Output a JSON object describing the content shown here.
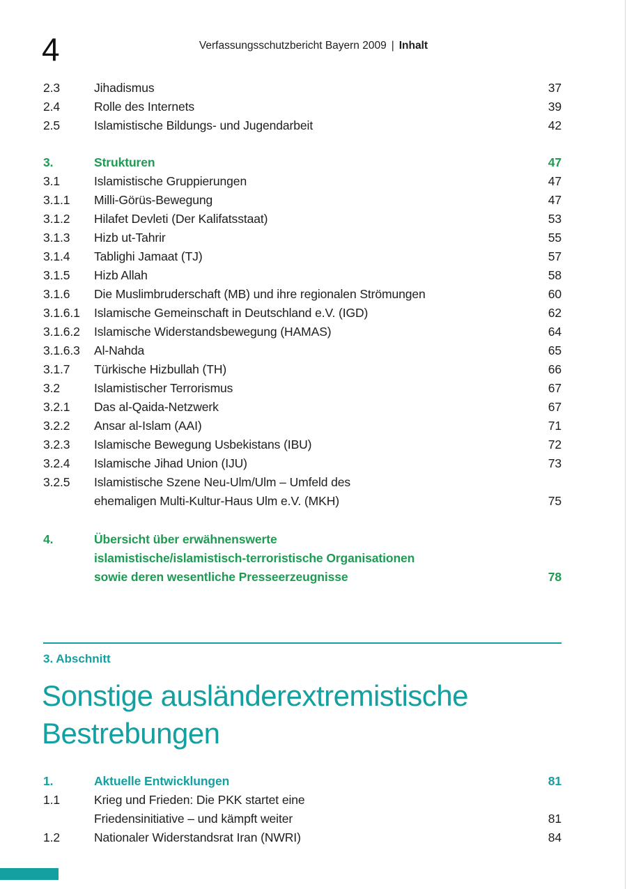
{
  "colors": {
    "accent_green": "#1e9b53",
    "accent_teal": "#14a0a0",
    "text": "#1d1d1b"
  },
  "header": {
    "page_number": "4",
    "report_title": "Verfassungsschutzbericht Bayern 2009",
    "separator": "|",
    "section_label": "Inhalt"
  },
  "toc_islamismus": {
    "entries": [
      {
        "num": "2.3",
        "lines": [
          "Jihadismus"
        ],
        "page": "37"
      },
      {
        "num": "2.4",
        "lines": [
          "Rolle des Internets"
        ],
        "page": "39"
      },
      {
        "num": "2.5",
        "lines": [
          "Islamistische Bildungs- und Jugendarbeit"
        ],
        "page": "42"
      },
      {
        "num": "3.",
        "lines": [
          "Strukturen"
        ],
        "page": "47"
      },
      {
        "num": "3.1",
        "lines": [
          "Islamistische Gruppierungen"
        ],
        "page": "47"
      },
      {
        "num": "3.1.1",
        "lines": [
          "Milli-Görüs-Bewegung"
        ],
        "page": "47"
      },
      {
        "num": "3.1.2",
        "lines": [
          "Hilafet Devleti (Der Kalifatsstaat)"
        ],
        "page": "53"
      },
      {
        "num": "3.1.3",
        "lines": [
          "Hizb ut-Tahrir"
        ],
        "page": "55"
      },
      {
        "num": "3.1.4",
        "lines": [
          "Tablighi Jamaat (TJ)"
        ],
        "page": "57"
      },
      {
        "num": "3.1.5",
        "lines": [
          "Hizb Allah"
        ],
        "page": "58"
      },
      {
        "num": "3.1.6",
        "lines": [
          "Die Muslimbruderschaft (MB) und ihre regionalen Strömungen"
        ],
        "page": "60"
      },
      {
        "num": "3.1.6.1",
        "lines": [
          "Islamische Gemeinschaft in Deutschland e.V. (IGD)"
        ],
        "page": "62"
      },
      {
        "num": "3.1.6.2",
        "lines": [
          "Islamische Widerstandsbewegung (HAMAS)"
        ],
        "page": "64"
      },
      {
        "num": "3.1.6.3",
        "lines": [
          "Al-Nahda"
        ],
        "page": "65"
      },
      {
        "num": "3.1.7",
        "lines": [
          "Türkische Hizbullah (TH)"
        ],
        "page": "66"
      },
      {
        "num": "3.2",
        "lines": [
          "Islamistischer Terrorismus"
        ],
        "page": "67"
      },
      {
        "num": "3.2.1",
        "lines": [
          "Das al-Qaida-Netzwerk"
        ],
        "page": "67"
      },
      {
        "num": "3.2.2",
        "lines": [
          "Ansar al-Islam (AAI)"
        ],
        "page": "71"
      },
      {
        "num": "3.2.3",
        "lines": [
          "Islamische Bewegung Usbekistans (IBU)"
        ],
        "page": "72"
      },
      {
        "num": "3.2.4",
        "lines": [
          "Islamische Jihad Union (IJU)"
        ],
        "page": "73"
      },
      {
        "num": "3.2.5",
        "lines": [
          "Islamistische Szene Neu-Ulm/Ulm – Umfeld des",
          "ehemaligen Multi-Kultur-Haus Ulm e.V. (MKH)"
        ],
        "page": "75"
      },
      {
        "num": "4.",
        "lines": [
          "Übersicht über erwähnenswerte",
          "islamistische/islamistisch-terroristische Organisationen",
          "sowie deren wesentliche Presseerzeugnisse"
        ],
        "page": "78"
      }
    ]
  },
  "section_break": {
    "kicker": "3. Abschnitt",
    "title_line1": "Sonstige ausländerextremistische",
    "title_line2": "Bestrebungen"
  },
  "toc_sonstige": {
    "entries": [
      {
        "num": "1.",
        "lines": [
          "Aktuelle Entwicklungen"
        ],
        "page": "81"
      },
      {
        "num": "1.1",
        "lines": [
          "Krieg und Frieden: Die PKK startet eine",
          "Friedensinitiative – und kämpft weiter"
        ],
        "page": "81"
      },
      {
        "num": "1.2",
        "lines": [
          "Nationaler Widerstandsrat Iran (NWRI)"
        ],
        "page": "84"
      }
    ]
  }
}
